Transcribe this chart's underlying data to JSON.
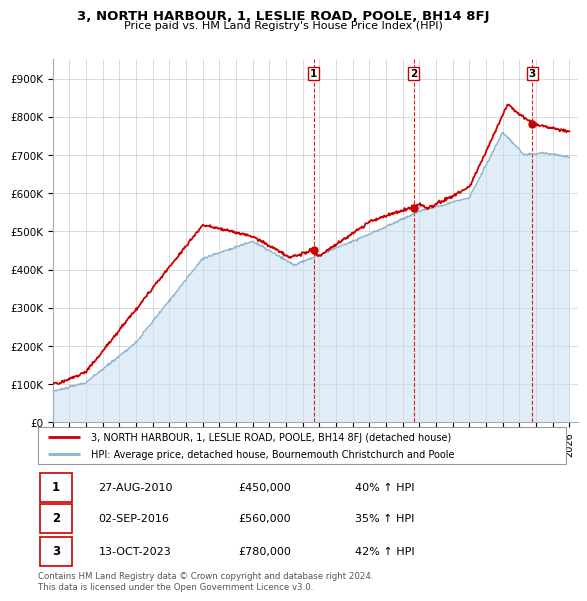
{
  "title": "3, NORTH HARBOUR, 1, LESLIE ROAD, POOLE, BH14 8FJ",
  "subtitle": "Price paid vs. HM Land Registry's House Price Index (HPI)",
  "ylabel_ticks": [
    "£0",
    "£100K",
    "£200K",
    "£300K",
    "£400K",
    "£500K",
    "£600K",
    "£700K",
    "£800K",
    "£900K"
  ],
  "ylim": [
    0,
    950000
  ],
  "xlim_start": 1995.0,
  "xlim_end": 2026.5,
  "house_color": "#cc0000",
  "hpi_fill_color": "#c8dff0",
  "hpi_line_color": "#8ab4d0",
  "sale_marker_color": "#cc0000",
  "vline_color": "#cc0000",
  "transactions": [
    {
      "label": "1",
      "date": 2010.65,
      "price": 450000,
      "display_date": "27-AUG-2010",
      "display_price": "£450,000",
      "hpi_pct": "40% ↑ HPI"
    },
    {
      "label": "2",
      "date": 2016.67,
      "price": 560000,
      "display_date": "02-SEP-2016",
      "display_price": "£560,000",
      "hpi_pct": "35% ↑ HPI"
    },
    {
      "label": "3",
      "date": 2023.78,
      "price": 780000,
      "display_date": "13-OCT-2023",
      "display_price": "£780,000",
      "hpi_pct": "42% ↑ HPI"
    }
  ],
  "legend_house": "3, NORTH HARBOUR, 1, LESLIE ROAD, POOLE, BH14 8FJ (detached house)",
  "legend_hpi": "HPI: Average price, detached house, Bournemouth Christchurch and Poole",
  "footnote": "Contains HM Land Registry data © Crown copyright and database right 2024.\nThis data is licensed under the Open Government Licence v3.0."
}
